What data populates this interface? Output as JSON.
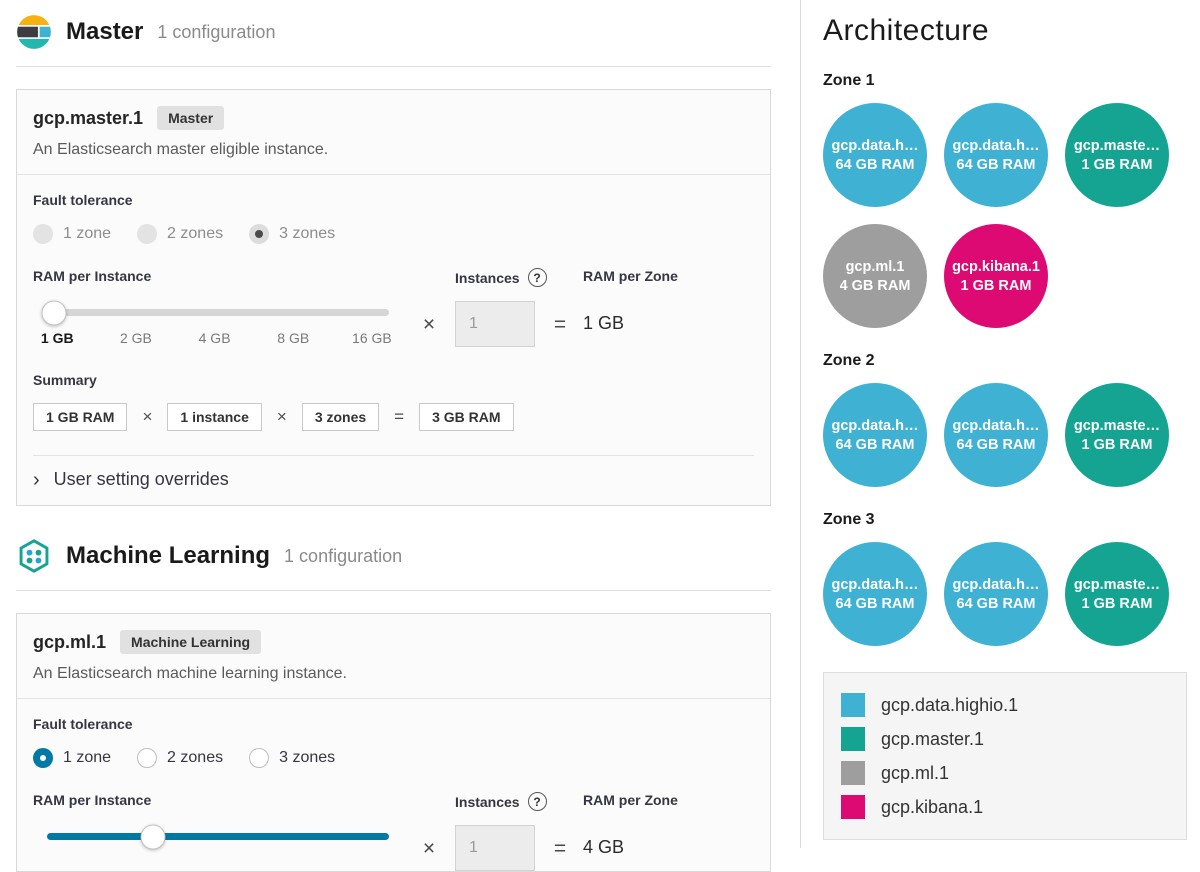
{
  "colors": {
    "data": "#3fb1d2",
    "master": "#16a492",
    "ml": "#9e9e9e",
    "kibana": "#dd0a73",
    "primary": "#0079a5"
  },
  "operators": {
    "times": "×",
    "equals": "="
  },
  "help_glyph": "?",
  "chevron_glyph": "›",
  "sections": {
    "master": {
      "title": "Master",
      "count": "1 configuration",
      "card": {
        "name": "gcp.master.1",
        "badge": "Master",
        "description": "An Elasticsearch master eligible instance.",
        "fault_tolerance_label": "Fault tolerance",
        "zone_options": [
          "1 zone",
          "2 zones",
          "3 zones"
        ],
        "selected_zone": "3 zones",
        "ram_label": "RAM per Instance",
        "ram_ticks": [
          "1 GB",
          "2 GB",
          "4 GB",
          "8 GB",
          "16 GB"
        ],
        "ram_selected": "1 GB",
        "instances_label": "Instances",
        "instances_value": "1",
        "ram_per_zone_label": "RAM per Zone",
        "ram_per_zone_value": "1 GB",
        "summary_label": "Summary",
        "summary_ram": "1 GB RAM",
        "summary_instances": "1 instance",
        "summary_zones": "3 zones",
        "summary_total": "3 GB RAM",
        "overrides_label": "User setting overrides"
      }
    },
    "ml": {
      "title": "Machine Learning",
      "count": "1 configuration",
      "card": {
        "name": "gcp.ml.1",
        "badge": "Machine Learning",
        "description": "An Elasticsearch machine learning instance.",
        "fault_tolerance_label": "Fault tolerance",
        "zone_options": [
          "1 zone",
          "2 zones",
          "3 zones"
        ],
        "selected_zone": "1 zone",
        "ram_label": "RAM per Instance",
        "instances_label": "Instances",
        "instances_value": "1",
        "ram_per_zone_label": "RAM per Zone",
        "ram_per_zone_value": "4 GB"
      }
    }
  },
  "architecture": {
    "title": "Architecture",
    "zones": [
      {
        "name": "Zone 1",
        "instances": [
          {
            "name": "gcp.data.h…",
            "ram": "64 GB RAM",
            "color": "data"
          },
          {
            "name": "gcp.data.h…",
            "ram": "64 GB RAM",
            "color": "data"
          },
          {
            "name": "gcp.maste…",
            "ram": "1 GB RAM",
            "color": "master"
          },
          {
            "name": "gcp.ml.1",
            "ram": "4 GB RAM",
            "color": "ml"
          },
          {
            "name": "gcp.kibana.1",
            "ram": "1 GB RAM",
            "color": "kibana"
          }
        ]
      },
      {
        "name": "Zone 2",
        "instances": [
          {
            "name": "gcp.data.h…",
            "ram": "64 GB RAM",
            "color": "data"
          },
          {
            "name": "gcp.data.h…",
            "ram": "64 GB RAM",
            "color": "data"
          },
          {
            "name": "gcp.maste…",
            "ram": "1 GB RAM",
            "color": "master"
          }
        ]
      },
      {
        "name": "Zone 3",
        "instances": [
          {
            "name": "gcp.data.h…",
            "ram": "64 GB RAM",
            "color": "data"
          },
          {
            "name": "gcp.data.h…",
            "ram": "64 GB RAM",
            "color": "data"
          },
          {
            "name": "gcp.maste…",
            "ram": "1 GB RAM",
            "color": "master"
          }
        ]
      }
    ],
    "legend": [
      {
        "label": "gcp.data.highio.1",
        "color": "data"
      },
      {
        "label": "gcp.master.1",
        "color": "master"
      },
      {
        "label": "gcp.ml.1",
        "color": "ml"
      },
      {
        "label": "gcp.kibana.1",
        "color": "kibana"
      }
    ]
  }
}
